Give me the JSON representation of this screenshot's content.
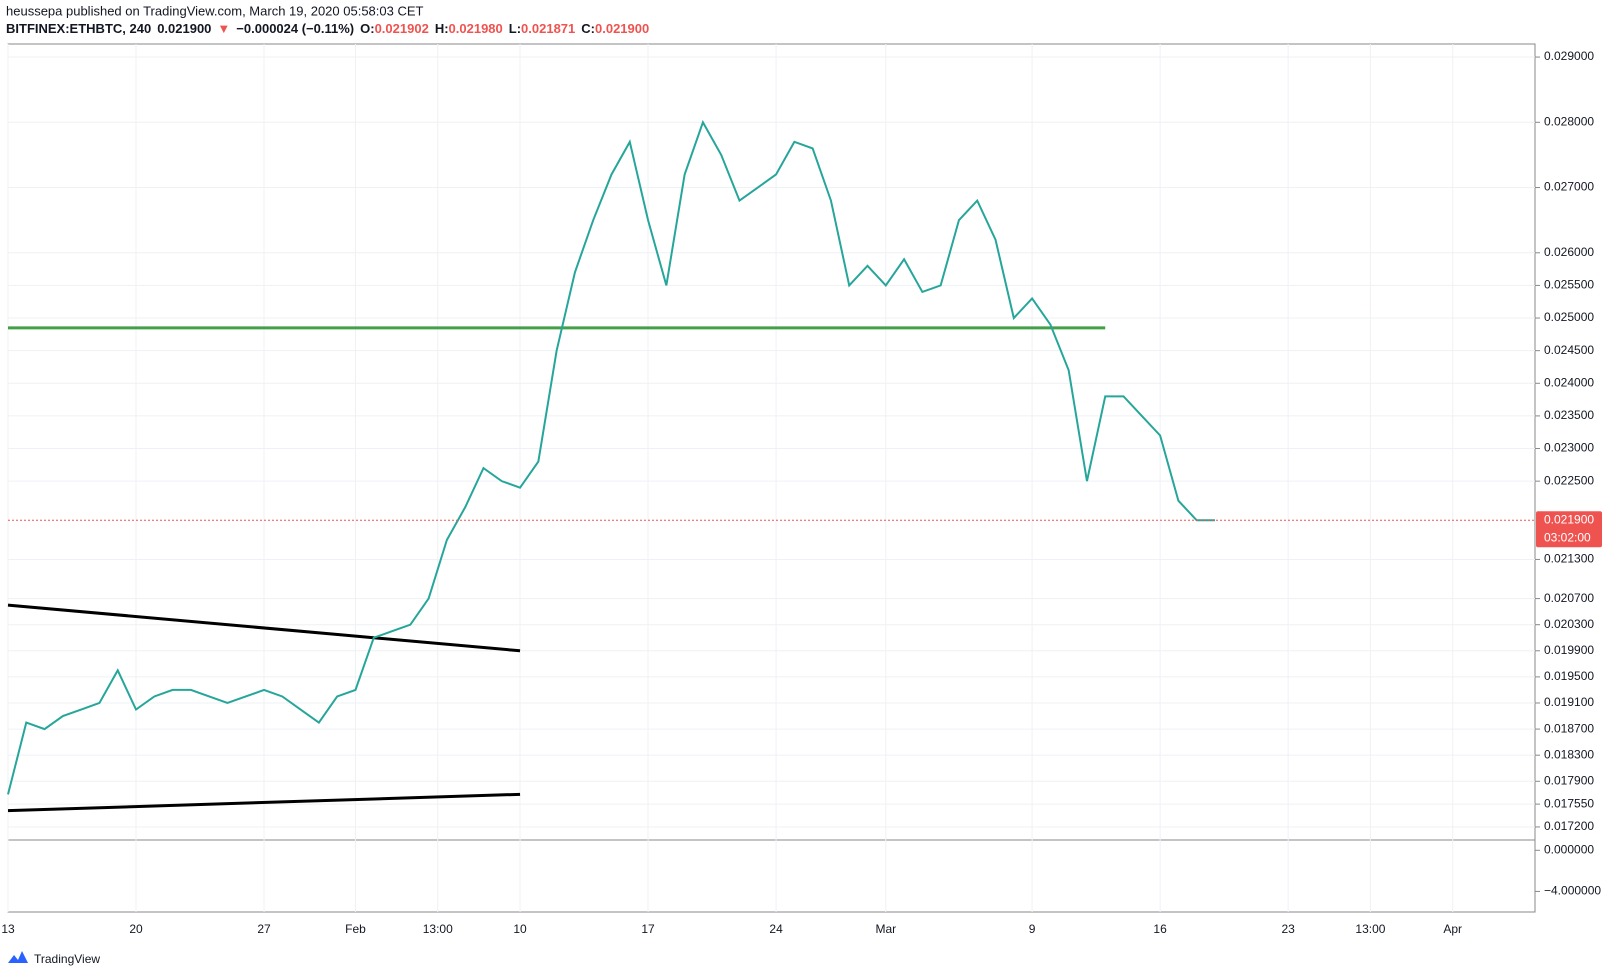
{
  "header": {
    "publisher": "heussepa published on TradingView.com, March 19, 2020 05:58:03 CET",
    "symbol": "BITFINEX:ETHBTC, 240",
    "last": "0.021900",
    "arrow": "▼",
    "change": "−0.000024 (−0.11%)",
    "o_label": "O:",
    "o": "0.021902",
    "h_label": "H:",
    "h": "0.021980",
    "l_label": "L:",
    "l": "0.021871",
    "c_label": "C:",
    "c": "0.021900"
  },
  "footer": {
    "brand": "TradingView"
  },
  "chart_data": {
    "type": "line",
    "series": [
      {
        "name": "ETHBTC",
        "color": "#26a69a",
        "values": [
          0.0177,
          0.0188,
          0.0187,
          0.0189,
          0.019,
          0.0191,
          0.0196,
          0.019,
          0.0192,
          0.0193,
          0.0193,
          0.0192,
          0.0191,
          0.0192,
          0.0193,
          0.0192,
          0.019,
          0.0188,
          0.0192,
          0.0193,
          0.0201,
          0.0202,
          0.0203,
          0.0207,
          0.0216,
          0.0221,
          0.0227,
          0.0225,
          0.0224,
          0.0228,
          0.0245,
          0.0257,
          0.0265,
          0.0272,
          0.0277,
          0.0265,
          0.0255,
          0.0272,
          0.028,
          0.0275,
          0.0268,
          0.027,
          0.0272,
          0.0277,
          0.0276,
          0.0268,
          0.0255,
          0.0258,
          0.0255,
          0.0259,
          0.0254,
          0.0255,
          0.0265,
          0.0268,
          0.0262,
          0.025,
          0.0253,
          0.0249,
          0.0242,
          0.0225,
          0.0238,
          0.0238,
          0.0235,
          0.0232,
          0.0222,
          0.0219,
          0.0219
        ]
      }
    ],
    "xlim": [
      0,
      83.5
    ],
    "ylim": [
      0.017,
      0.0292
    ],
    "xticks": [
      {
        "value": 0,
        "label": "13"
      },
      {
        "value": 7,
        "label": "20"
      },
      {
        "value": 14,
        "label": "27"
      },
      {
        "value": 19,
        "label": "Feb"
      },
      {
        "value": 23.5,
        "label": "13:00"
      },
      {
        "value": 28,
        "label": "10"
      },
      {
        "value": 35,
        "label": "17"
      },
      {
        "value": 42,
        "label": "24"
      },
      {
        "value": 48,
        "label": "Mar"
      },
      {
        "value": 56,
        "label": "9"
      },
      {
        "value": 63,
        "label": "16"
      },
      {
        "value": 70,
        "label": "23"
      },
      {
        "value": 74.5,
        "label": "13:00"
      },
      {
        "value": 79,
        "label": "Apr"
      }
    ],
    "yticks": [
      {
        "value": 0.029,
        "label": "0.029000"
      },
      {
        "value": 0.028,
        "label": "0.028000"
      },
      {
        "value": 0.027,
        "label": "0.027000"
      },
      {
        "value": 0.026,
        "label": "0.026000"
      },
      {
        "value": 0.0255,
        "label": "0.025500"
      },
      {
        "value": 0.025,
        "label": "0.025000"
      },
      {
        "value": 0.0245,
        "label": "0.024500"
      },
      {
        "value": 0.024,
        "label": "0.024000"
      },
      {
        "value": 0.0235,
        "label": "0.023500"
      },
      {
        "value": 0.023,
        "label": "0.023000"
      },
      {
        "value": 0.0225,
        "label": "0.022500"
      },
      {
        "value": 0.0213,
        "label": "0.021300"
      },
      {
        "value": 0.0207,
        "label": "0.020700"
      },
      {
        "value": 0.0203,
        "label": "0.020300"
      },
      {
        "value": 0.0199,
        "label": "0.019900"
      },
      {
        "value": 0.0195,
        "label": "0.019500"
      },
      {
        "value": 0.0191,
        "label": "0.019100"
      },
      {
        "value": 0.0187,
        "label": "0.018700"
      },
      {
        "value": 0.0183,
        "label": "0.018300"
      },
      {
        "value": 0.0179,
        "label": "0.017900"
      },
      {
        "value": 0.01755,
        "label": "0.017550"
      },
      {
        "value": 0.0172,
        "label": "0.017200"
      }
    ],
    "grid": true,
    "price_line": {
      "value": 0.0219,
      "label": "0.021900",
      "countdown": "03:02:00",
      "color": "#ef5350"
    },
    "lines": [
      {
        "color": "#43a047",
        "x": [
          0,
          60
        ],
        "values": [
          0.02485,
          0.02485
        ]
      },
      {
        "color": "#000000",
        "x": [
          0,
          28
        ],
        "values": [
          0.0206,
          0.0199
        ]
      },
      {
        "color": "#000000",
        "x": [
          0,
          28
        ],
        "values": [
          0.01745,
          0.0177
        ]
      }
    ],
    "sub_ylim": [
      -6,
      1
    ],
    "sub_yticks": [
      {
        "value": 0,
        "label": "0.000000"
      },
      {
        "value": -4,
        "label": "−4.000000"
      }
    ]
  }
}
